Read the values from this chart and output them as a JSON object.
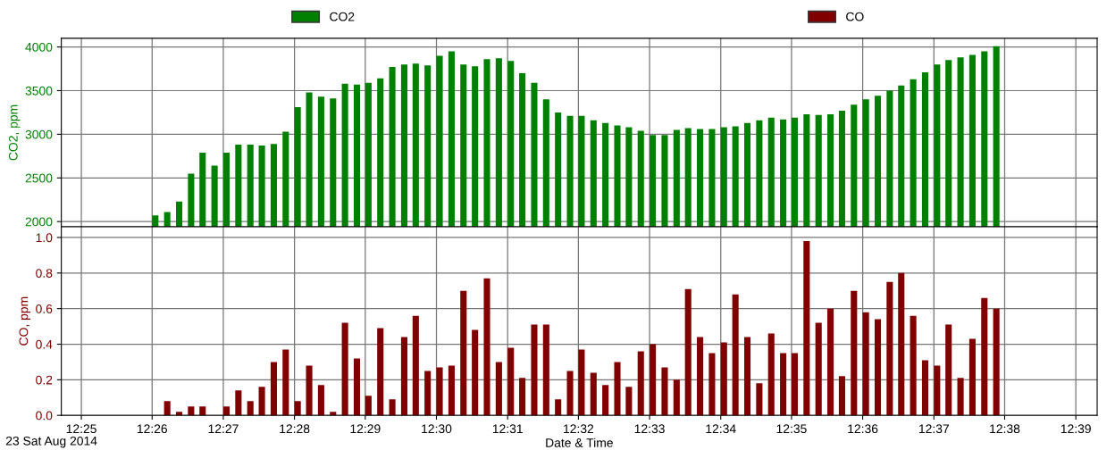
{
  "chart_data": [
    {
      "type": "bar",
      "ylabel": "CO2, ppm",
      "legend": "top",
      "grid": true,
      "tick_labels": "y",
      "xlim": [
        12.412,
        12.655
      ],
      "ylim": [
        1940,
        4100
      ],
      "yticks": [
        2000,
        2500,
        3000,
        3500,
        4000
      ],
      "x": [
        12.4333,
        12.4361,
        12.4389,
        12.4417,
        12.4444,
        12.4472,
        12.45,
        12.4528,
        12.4556,
        12.4583,
        12.4611,
        12.4639,
        12.4667,
        12.4694,
        12.4722,
        12.475,
        12.4778,
        12.4806,
        12.4833,
        12.4861,
        12.4889,
        12.4917,
        12.4944,
        12.4972,
        12.5,
        12.5028,
        12.5056,
        12.5083,
        12.5111,
        12.5139,
        12.5167,
        12.5194,
        12.5222,
        12.525,
        12.5278,
        12.5306,
        12.5333,
        12.5361,
        12.5389,
        12.5417,
        12.5444,
        12.5472,
        12.55,
        12.5528,
        12.5556,
        12.5583,
        12.5611,
        12.5639,
        12.5667,
        12.5694,
        12.5722,
        12.575,
        12.5778,
        12.5806,
        12.5833,
        12.5861,
        12.5889,
        12.5917,
        12.5944,
        12.5972,
        12.6,
        12.6028,
        12.6056,
        12.6083,
        12.6111,
        12.6139,
        12.6167,
        12.6194,
        12.6222,
        12.625,
        12.6278,
        12.6306
      ],
      "series": [
        {
          "name": "CO2",
          "color": "#008000",
          "values": [
            2070,
            2110,
            2230,
            2550,
            2790,
            2640,
            2790,
            2880,
            2880,
            2870,
            2890,
            3030,
            3310,
            3480,
            3430,
            3410,
            3580,
            3570,
            3590,
            3640,
            3770,
            3800,
            3810,
            3790,
            3900,
            3950,
            3800,
            3780,
            3860,
            3870,
            3840,
            3700,
            3590,
            3400,
            3250,
            3210,
            3210,
            3160,
            3130,
            3100,
            3080,
            3040,
            2990,
            2990,
            3050,
            3070,
            3060,
            3060,
            3080,
            3090,
            3130,
            3160,
            3190,
            3170,
            3190,
            3230,
            3220,
            3230,
            3270,
            3340,
            3400,
            3440,
            3500,
            3560,
            3630,
            3710,
            3800,
            3850,
            3880,
            3910,
            3950,
            4010
          ]
        }
      ]
    },
    {
      "type": "bar",
      "ylabel": "CO, ppm",
      "xlabel": "Date & Time",
      "legend": "top",
      "grid": true,
      "annotations": [
        "23 Sat Aug 2014"
      ],
      "xlim": [
        12.412,
        12.655
      ],
      "ylim": [
        0,
        1.06
      ],
      "yticks": [
        {
          "value": 0,
          "label": "0.0"
        },
        {
          "value": 0.2,
          "label": "0.2"
        },
        {
          "value": 0.4,
          "label": "0.4"
        },
        {
          "value": 0.6,
          "label": "0.6"
        },
        {
          "value": 0.8,
          "label": "0.8"
        },
        {
          "value": 1,
          "label": "1.0"
        }
      ],
      "xticks": [
        {
          "value": 12.4167,
          "label": "12:25"
        },
        {
          "value": 12.4333,
          "label": "12:26"
        },
        {
          "value": 12.45,
          "label": "12:27"
        },
        {
          "value": 12.4667,
          "label": "12:28"
        },
        {
          "value": 12.4833,
          "label": "12:29"
        },
        {
          "value": 12.5,
          "label": "12:30"
        },
        {
          "value": 12.5167,
          "label": "12:31"
        },
        {
          "value": 12.5333,
          "label": "12:32"
        },
        {
          "value": 12.55,
          "label": "12:33"
        },
        {
          "value": 12.5667,
          "label": "12:34"
        },
        {
          "value": 12.5833,
          "label": "12:35"
        },
        {
          "value": 12.6,
          "label": "12:36"
        },
        {
          "value": 12.6167,
          "label": "12:37"
        },
        {
          "value": 12.6333,
          "label": "12:38"
        },
        {
          "value": 12.65,
          "label": "12:39"
        }
      ],
      "x": [
        12.4333,
        12.4361,
        12.4389,
        12.4417,
        12.4444,
        12.4472,
        12.45,
        12.4528,
        12.4556,
        12.4583,
        12.4611,
        12.4639,
        12.4667,
        12.4694,
        12.4722,
        12.475,
        12.4778,
        12.4806,
        12.4833,
        12.4861,
        12.4889,
        12.4917,
        12.4944,
        12.4972,
        12.5,
        12.5028,
        12.5056,
        12.5083,
        12.5111,
        12.5139,
        12.5167,
        12.5194,
        12.5222,
        12.525,
        12.5278,
        12.5306,
        12.5333,
        12.5361,
        12.5389,
        12.5417,
        12.5444,
        12.5472,
        12.55,
        12.5528,
        12.5556,
        12.5583,
        12.5611,
        12.5639,
        12.5667,
        12.5694,
        12.5722,
        12.575,
        12.5778,
        12.5806,
        12.5833,
        12.5861,
        12.5889,
        12.5917,
        12.5944,
        12.5972,
        12.6,
        12.6028,
        12.6056,
        12.6083,
        12.6111,
        12.6139,
        12.6167,
        12.6194,
        12.6222,
        12.625,
        12.6278,
        12.6306
      ],
      "series": [
        {
          "name": "CO",
          "color": "#800000",
          "values": [
            0,
            0.08,
            0.02,
            0.05,
            0.05,
            0,
            0.05,
            0.14,
            0.08,
            0.16,
            0.3,
            0.37,
            0.08,
            0.28,
            0.17,
            0.02,
            0.52,
            0.32,
            0.11,
            0.49,
            0.09,
            0.44,
            0.56,
            0.25,
            0.27,
            0.28,
            0.7,
            0.48,
            0.77,
            0.3,
            0.38,
            0.21,
            0.51,
            0.51,
            0.09,
            0.25,
            0.37,
            0.24,
            0.17,
            0.3,
            0.16,
            0.36,
            0.4,
            0.27,
            0.2,
            0.71,
            0.44,
            0.35,
            0.41,
            0.68,
            0.44,
            0.18,
            0.46,
            0.35,
            0.35,
            0.98,
            0.52,
            0.6,
            0.22,
            0.7,
            0.58,
            0.54,
            0.75,
            0.8,
            0.56,
            0.31,
            0.28,
            0.51,
            0.21,
            0.43,
            0.66,
            0.6
          ]
        }
      ]
    }
  ]
}
